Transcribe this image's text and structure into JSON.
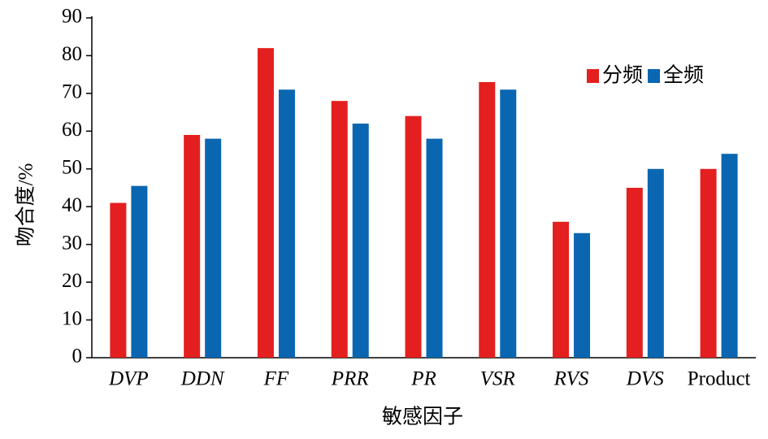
{
  "chart_data": {
    "type": "bar",
    "x_label": "敏感因子",
    "y_label": "吻合度/%",
    "categories": [
      "DVP",
      "DDN",
      "FF",
      "PRR",
      "PR",
      "VSR",
      "RVS",
      "DVS",
      "Product"
    ],
    "series": [
      {
        "name": "分频",
        "color": "#e3201f",
        "values": [
          41,
          59,
          82,
          68,
          64,
          73,
          36,
          45,
          50
        ]
      },
      {
        "name": "全频",
        "color": "#0a66b0",
        "values": [
          45.5,
          58,
          71,
          62,
          58,
          71,
          33,
          50,
          54
        ]
      }
    ],
    "ylim": [
      0,
      90
    ],
    "yticks": [
      0,
      10,
      20,
      30,
      40,
      50,
      60,
      70,
      80,
      90
    ],
    "grid": false,
    "legend": "top-right"
  }
}
